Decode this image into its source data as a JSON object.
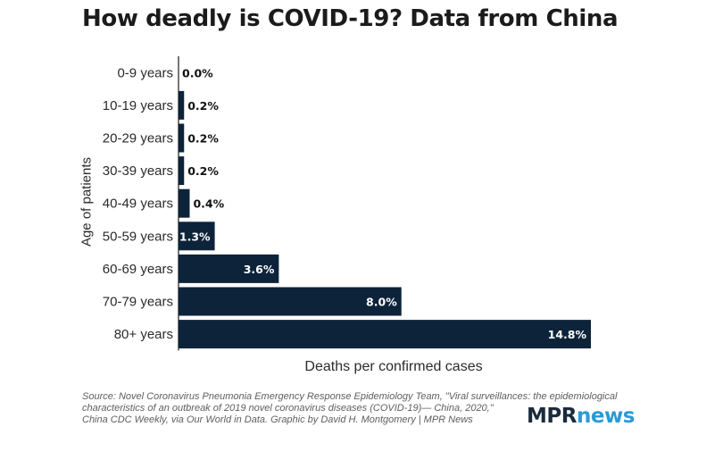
{
  "chart_data": {
    "type": "bar",
    "orientation": "horizontal",
    "title": "How deadly is COVID-19? Data from China",
    "xlabel": "Deaths per confirmed cases",
    "ylabel": "Age of patients",
    "categories": [
      "0-9 years",
      "10-19 years",
      "20-29 years",
      "30-39 years",
      "40-49 years",
      "50-59 years",
      "60-69 years",
      "70-79 years",
      "80+ years"
    ],
    "values": [
      0.0,
      0.2,
      0.2,
      0.2,
      0.4,
      1.3,
      3.6,
      8.0,
      14.8
    ],
    "data_labels": [
      "0.0%",
      "0.2%",
      "0.2%",
      "0.2%",
      "0.4%",
      "1.3%",
      "3.6%",
      "8.0%",
      "14.8%"
    ],
    "xlim": [
      0,
      14.8
    ],
    "bar_color": "#0d233a",
    "grid": false
  },
  "source_lines": [
    "Source: Novel Coronavirus Pneumonia Emergency Response Epidemiology Team, \"Viral surveillances: the epidemiological",
    "characteristics of an outbreak of 2019 novel coronavirus diseases (COVID-19)— China, 2020,\"",
    "China CDC Weekly, via Our World in Data. Graphic by David H. Montgomery | MPR News"
  ],
  "logo": {
    "part1": "MPR",
    "part2": "news",
    "color1": "#1a2b3c",
    "color2": "#2b9ad6"
  }
}
